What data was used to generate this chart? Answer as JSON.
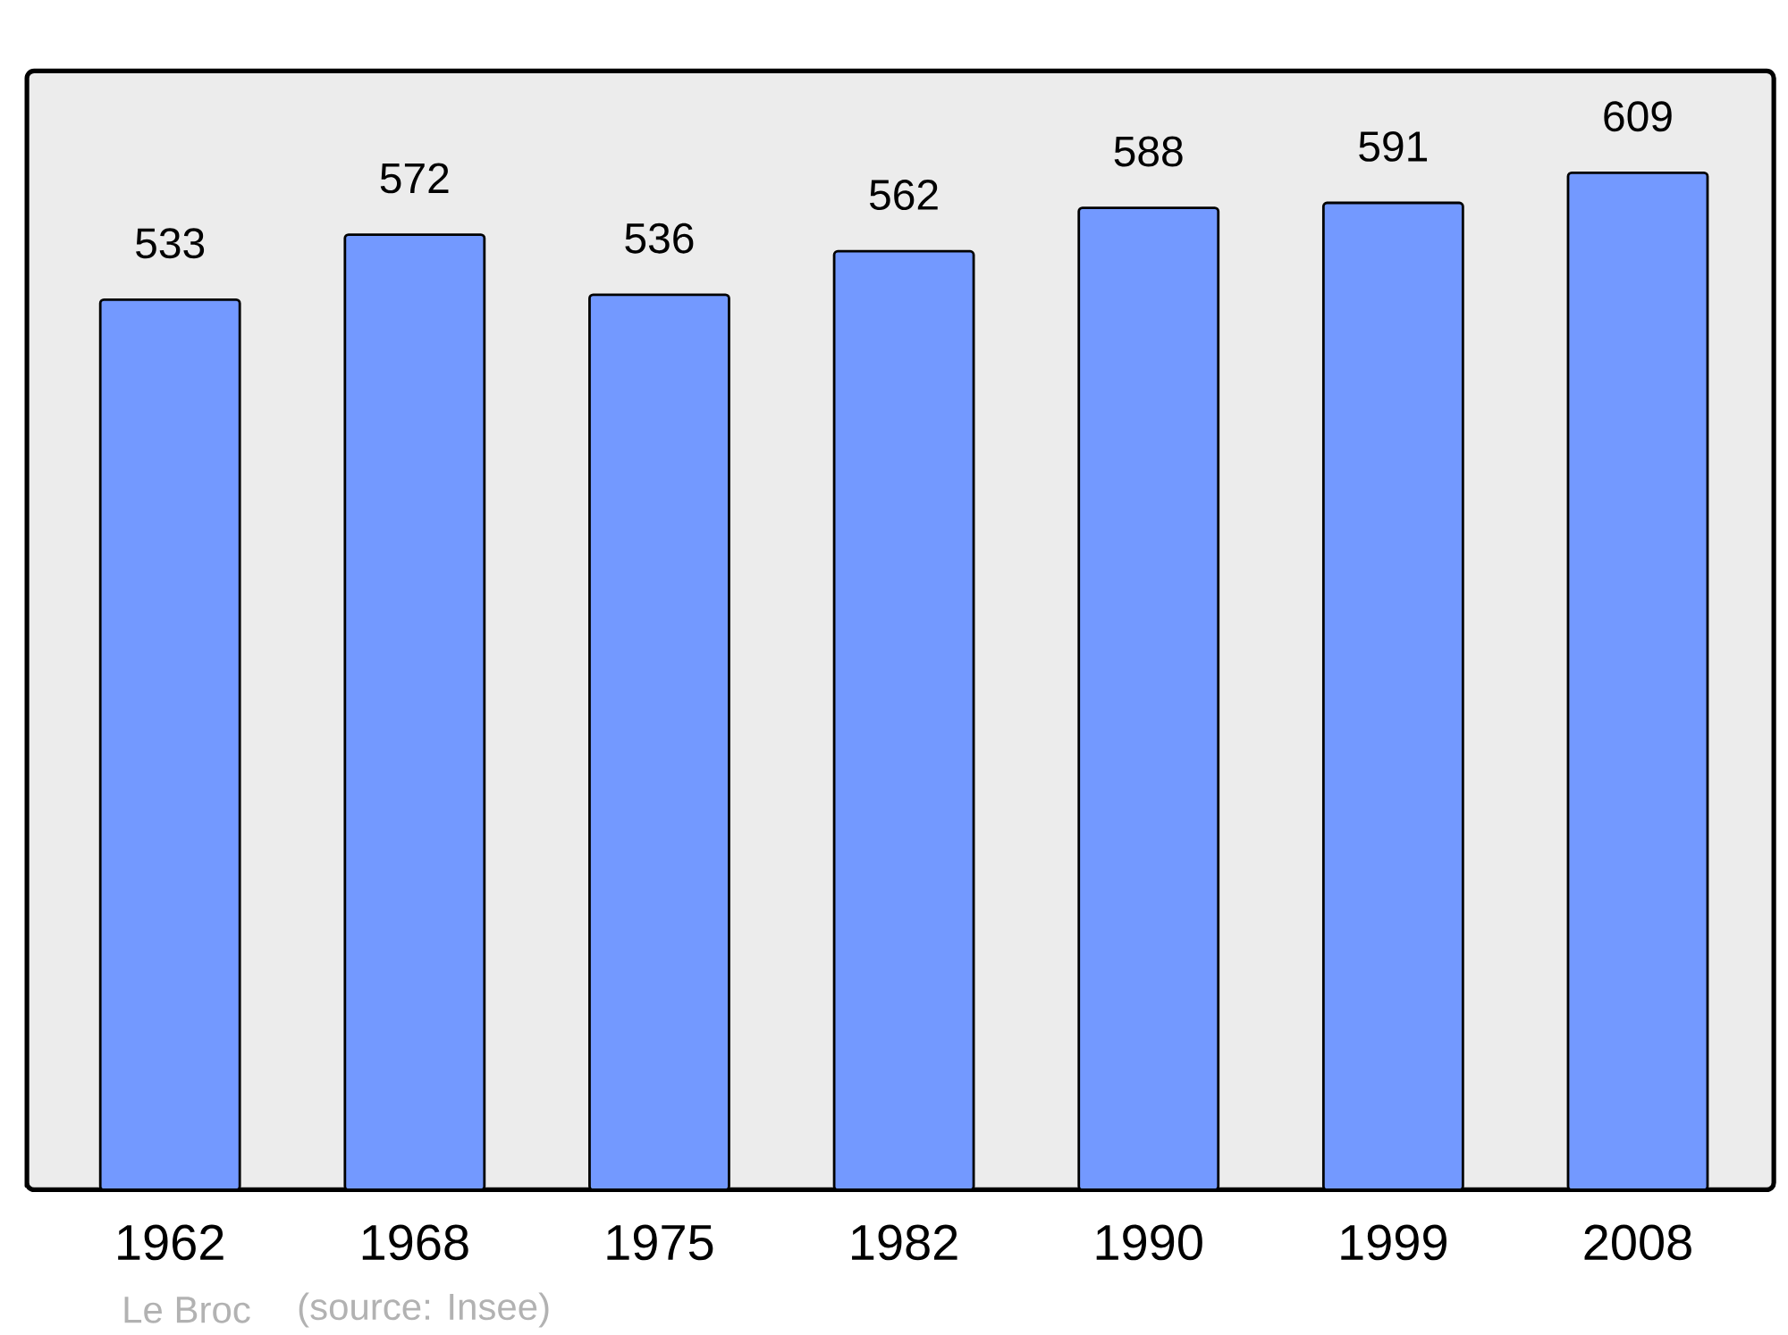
{
  "chart_data": {
    "type": "bar",
    "categories": [
      "1962",
      "1968",
      "1975",
      "1982",
      "1990",
      "1999",
      "2008"
    ],
    "values": [
      533,
      572,
      536,
      562,
      588,
      591,
      609
    ],
    "color": "#7399ff",
    "ylim": [
      0,
      670
    ],
    "data_labels": true,
    "annotations": [
      "Le Broc",
      "(source: Insee)"
    ]
  }
}
